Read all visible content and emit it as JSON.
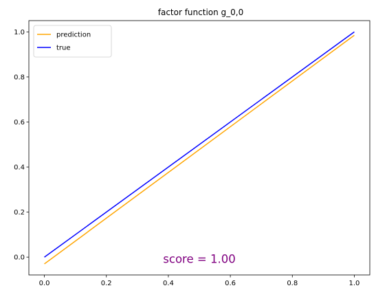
{
  "chart_data": {
    "type": "line",
    "title": "factor function g_0,0",
    "xlabel": "",
    "ylabel": "",
    "xlim": [
      -0.05,
      1.05
    ],
    "ylim": [
      -0.079,
      1.05
    ],
    "xticks": [
      0.0,
      0.2,
      0.4,
      0.6,
      0.8,
      1.0
    ],
    "yticks": [
      0.0,
      0.2,
      0.4,
      0.6,
      0.8,
      1.0
    ],
    "xtick_labels": [
      "0.0",
      "0.2",
      "0.4",
      "0.6",
      "0.8",
      "1.0"
    ],
    "ytick_labels": [
      "0.0",
      "0.2",
      "0.4",
      "0.6",
      "0.8",
      "1.0"
    ],
    "grid": false,
    "legend_position": "upper-left",
    "series": [
      {
        "name": "prediction",
        "color": "#ffa500",
        "x": [
          0.0,
          1.0
        ],
        "y": [
          -0.03,
          0.985
        ]
      },
      {
        "name": "true",
        "color": "#0000ff",
        "x": [
          0.0,
          1.0
        ],
        "y": [
          0.0,
          1.0
        ]
      }
    ],
    "annotation": {
      "text": "score =  1.00",
      "color": "#800080",
      "x": 0.5,
      "y": -0.01
    }
  }
}
